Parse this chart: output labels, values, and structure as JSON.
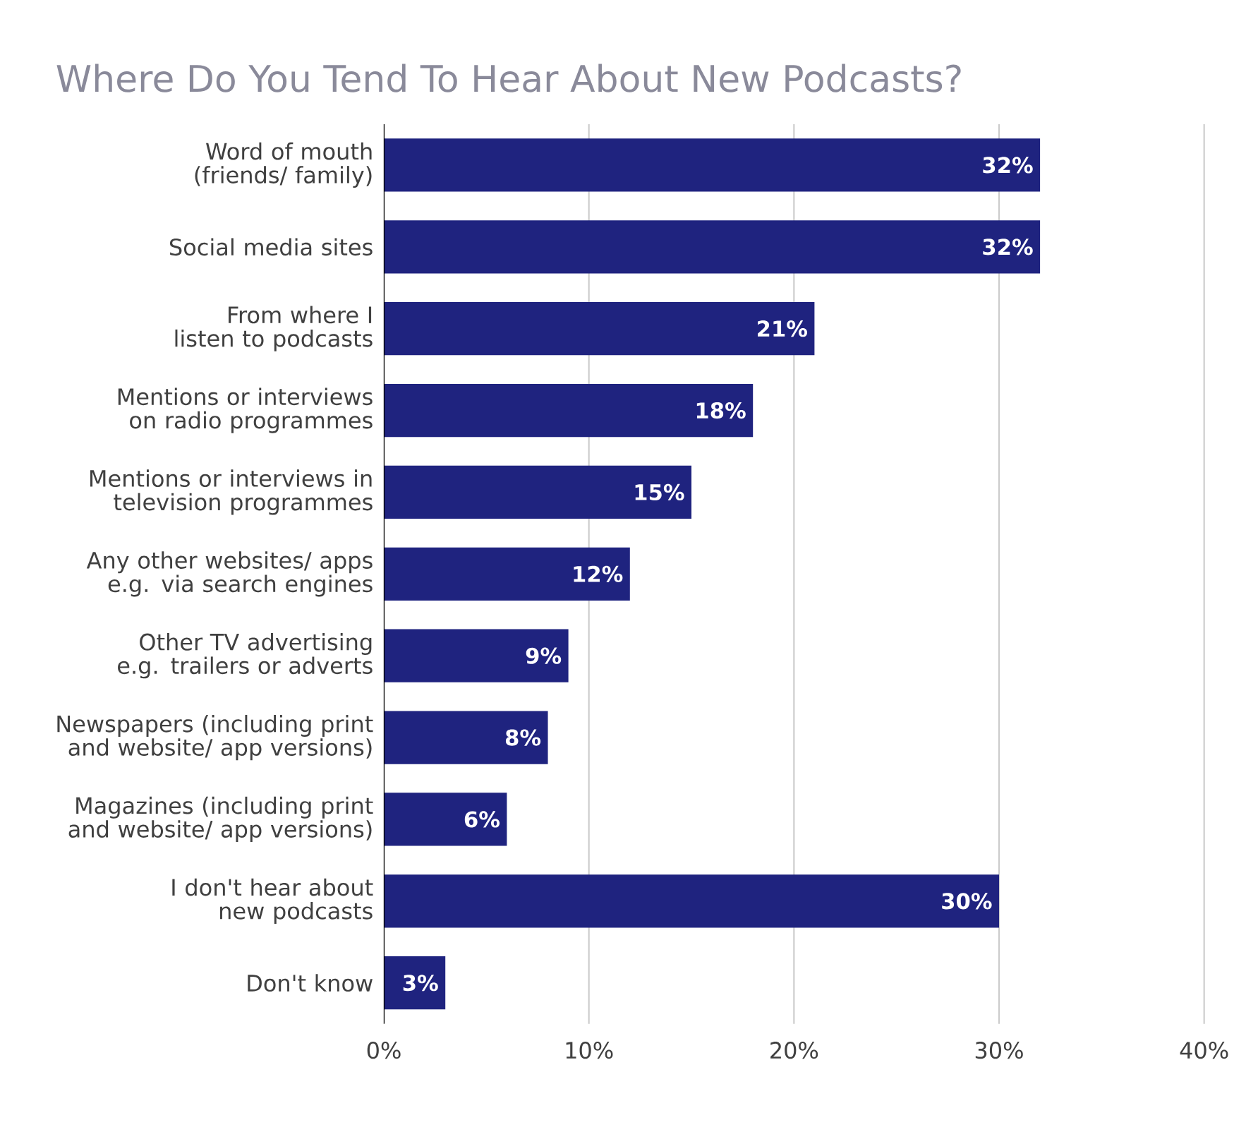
{
  "chart_data": {
    "type": "bar",
    "orientation": "horizontal",
    "title": "Where Do You Tend To Hear About New Podcasts?",
    "categories": [
      "Word of mouth (friends/ family)",
      "Social media sites",
      "From where I listen to podcasts",
      "Mentions or interviews on radio programmes",
      "Mentions or interviews in television programmes",
      "Any other websites/ apps e.g. via search engines",
      "Other TV advertising e.g. trailers or adverts",
      "Newspapers (including print and website/ app versions)",
      "Magazines (including print and website/ app versions)",
      "I don't hear about new podcasts",
      "Don't know"
    ],
    "values": [
      32,
      32,
      21,
      18,
      15,
      12,
      9,
      8,
      6,
      30,
      3
    ],
    "value_labels": [
      "32%",
      "32%",
      "21%",
      "18%",
      "15%",
      "12%",
      "9%",
      "8%",
      "6%",
      "30%",
      "3%"
    ],
    "color": "#1f237f",
    "xlim": [
      0,
      40
    ],
    "xticks": [
      {
        "value": 0,
        "label": "0%"
      },
      {
        "value": 10,
        "label": "10%"
      },
      {
        "value": 20,
        "label": "20%"
      },
      {
        "value": 30,
        "label": "30%"
      },
      {
        "value": 40,
        "label": "40%"
      }
    ],
    "grid": "x"
  }
}
